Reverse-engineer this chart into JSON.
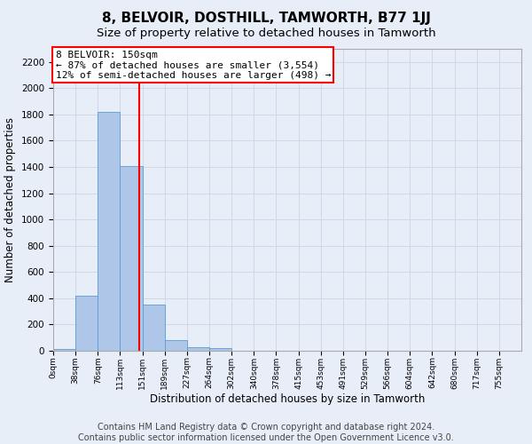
{
  "title": "8, BELVOIR, DOSTHILL, TAMWORTH, B77 1JJ",
  "subtitle": "Size of property relative to detached houses in Tamworth",
  "xlabel": "Distribution of detached houses by size in Tamworth",
  "ylabel": "Number of detached properties",
  "bin_labels": [
    "0sqm",
    "38sqm",
    "76sqm",
    "113sqm",
    "151sqm",
    "189sqm",
    "227sqm",
    "264sqm",
    "302sqm",
    "340sqm",
    "378sqm",
    "415sqm",
    "453sqm",
    "491sqm",
    "529sqm",
    "566sqm",
    "604sqm",
    "642sqm",
    "680sqm",
    "717sqm",
    "755sqm"
  ],
  "bin_values": [
    15,
    420,
    1820,
    1410,
    350,
    80,
    30,
    18,
    0,
    0,
    0,
    0,
    0,
    0,
    0,
    0,
    0,
    0,
    0,
    0,
    0
  ],
  "bar_color": "#aec6e8",
  "bar_edge_color": "#5b9bd5",
  "red_line_x": 3.87,
  "annotation_line1": "8 BELVOIR: 150sqm",
  "annotation_line2": "← 87% of detached houses are smaller (3,554)",
  "annotation_line3": "12% of semi-detached houses are larger (498) →",
  "ylim": [
    0,
    2300
  ],
  "yticks": [
    0,
    200,
    400,
    600,
    800,
    1000,
    1200,
    1400,
    1600,
    1800,
    2000,
    2200
  ],
  "grid_color": "#d0d8e8",
  "bg_color": "#e8eef8",
  "annotation_box_color": "white",
  "annotation_box_edge": "red",
  "footer1": "Contains HM Land Registry data © Crown copyright and database right 2024.",
  "footer2": "Contains public sector information licensed under the Open Government Licence v3.0.",
  "title_fontsize": 11,
  "subtitle_fontsize": 9.5,
  "annotation_fontsize": 8,
  "footer_fontsize": 7,
  "ylabel_fontsize": 8.5,
  "xlabel_fontsize": 8.5
}
